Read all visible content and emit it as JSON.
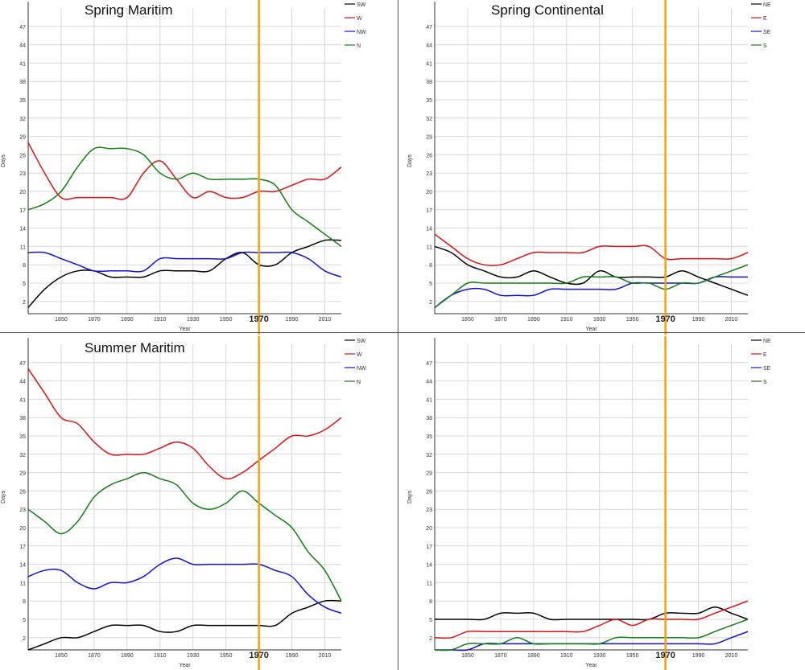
{
  "chart_data": [
    {
      "type": "line",
      "title": "Spring Maritim",
      "xlabel": "Year",
      "ylabel": "Days",
      "xlim": [
        1830,
        2020
      ],
      "ylim": [
        0,
        50
      ],
      "xticks": [
        1850,
        1870,
        1890,
        1910,
        1930,
        1950,
        1990,
        2010
      ],
      "yticks": [
        2,
        5,
        8,
        11,
        14,
        17,
        20,
        23,
        26,
        29,
        32,
        35,
        38,
        41,
        44,
        47
      ],
      "marker": {
        "year": 1970,
        "label": "1970",
        "color": "#f5a00f"
      },
      "grid": true,
      "legend": "top-right",
      "series": [
        {
          "name": "SW",
          "color": "#000000",
          "x": [
            1830,
            1840,
            1850,
            1860,
            1870,
            1880,
            1890,
            1900,
            1910,
            1920,
            1930,
            1940,
            1950,
            1960,
            1970,
            1980,
            1990,
            2000,
            2010,
            2020
          ],
          "y": [
            1,
            4,
            6,
            7,
            7,
            6,
            6,
            6,
            7,
            7,
            7,
            7,
            9,
            10,
            8,
            8,
            10,
            11,
            12,
            12
          ]
        },
        {
          "name": "W",
          "color": "#e01010",
          "x": [
            1830,
            1840,
            1850,
            1860,
            1870,
            1880,
            1890,
            1900,
            1910,
            1920,
            1930,
            1940,
            1950,
            1960,
            1970,
            1980,
            1990,
            2000,
            2010,
            2020
          ],
          "y": [
            28,
            23,
            19,
            19,
            19,
            19,
            19,
            23,
            25,
            22,
            19,
            20,
            19,
            19,
            20,
            20,
            21,
            22,
            22,
            24
          ]
        },
        {
          "name": "NW",
          "color": "#1010e0",
          "x": [
            1830,
            1840,
            1850,
            1860,
            1870,
            1880,
            1890,
            1900,
            1910,
            1920,
            1930,
            1940,
            1950,
            1960,
            1970,
            1980,
            1990,
            2000,
            2010,
            2020
          ],
          "y": [
            10,
            10,
            9,
            8,
            7,
            7,
            7,
            7,
            9,
            9,
            9,
            9,
            9,
            10,
            10,
            10,
            10,
            9,
            7,
            6
          ]
        },
        {
          "name": "N",
          "color": "#108010",
          "x": [
            1830,
            1840,
            1850,
            1860,
            1870,
            1880,
            1890,
            1900,
            1910,
            1920,
            1930,
            1940,
            1950,
            1960,
            1970,
            1980,
            1990,
            2000,
            2010,
            2020
          ],
          "y": [
            17,
            18,
            20,
            24,
            27,
            27,
            27,
            26,
            23,
            22,
            23,
            22,
            22,
            22,
            22,
            21,
            17,
            15,
            13,
            11
          ]
        }
      ]
    },
    {
      "type": "line",
      "title": "Spring Continental",
      "xlabel": "Year",
      "ylabel": "Days",
      "xlim": [
        1830,
        2020
      ],
      "ylim": [
        0,
        50
      ],
      "xticks": [
        1850,
        1870,
        1890,
        1910,
        1930,
        1950,
        1990,
        2010
      ],
      "yticks": [
        2,
        5,
        8,
        11,
        14,
        17,
        20,
        23,
        26,
        29,
        32,
        35,
        38,
        41,
        44,
        47
      ],
      "marker": {
        "year": 1970,
        "label": "1970",
        "color": "#f5a00f"
      },
      "grid": true,
      "legend": "top-right",
      "series": [
        {
          "name": "NE",
          "color": "#000000",
          "x": [
            1830,
            1840,
            1850,
            1860,
            1870,
            1880,
            1890,
            1900,
            1910,
            1920,
            1930,
            1940,
            1950,
            1960,
            1970,
            1980,
            1990,
            2000,
            2010,
            2020
          ],
          "y": [
            11,
            10,
            8,
            7,
            6,
            6,
            7,
            6,
            5,
            5,
            7,
            6,
            6,
            6,
            6,
            7,
            6,
            5,
            4,
            3
          ]
        },
        {
          "name": "E",
          "color": "#e01010",
          "x": [
            1830,
            1840,
            1850,
            1860,
            1870,
            1880,
            1890,
            1900,
            1910,
            1920,
            1930,
            1940,
            1950,
            1960,
            1970,
            1980,
            1990,
            2000,
            2010,
            2020
          ],
          "y": [
            13,
            11,
            9,
            8,
            8,
            9,
            10,
            10,
            10,
            10,
            11,
            11,
            11,
            11,
            9,
            9,
            9,
            9,
            9,
            10
          ]
        },
        {
          "name": "SE",
          "color": "#1010e0",
          "x": [
            1830,
            1840,
            1850,
            1860,
            1870,
            1880,
            1890,
            1900,
            1910,
            1920,
            1930,
            1940,
            1950,
            1960,
            1970,
            1980,
            1990,
            2000,
            2010,
            2020
          ],
          "y": [
            1,
            3,
            4,
            4,
            3,
            3,
            3,
            4,
            4,
            4,
            4,
            4,
            5,
            5,
            5,
            5,
            5,
            6,
            6,
            6
          ]
        },
        {
          "name": "S",
          "color": "#108010",
          "x": [
            1830,
            1840,
            1850,
            1860,
            1870,
            1880,
            1890,
            1900,
            1910,
            1920,
            1930,
            1940,
            1950,
            1960,
            1970,
            1980,
            1990,
            2000,
            2010,
            2020
          ],
          "y": [
            1,
            3,
            5,
            5,
            5,
            5,
            5,
            5,
            5,
            6,
            6,
            6,
            5,
            5,
            4,
            5,
            5,
            6,
            7,
            8
          ]
        }
      ]
    },
    {
      "type": "line",
      "title": "Summer Maritim",
      "xlabel": "Year",
      "ylabel": "Days",
      "xlim": [
        1830,
        2020
      ],
      "ylim": [
        0,
        50
      ],
      "xticks": [
        1850,
        1870,
        1890,
        1910,
        1930,
        1950,
        1990,
        2010
      ],
      "yticks": [
        2,
        5,
        8,
        11,
        14,
        17,
        20,
        23,
        26,
        29,
        32,
        35,
        38,
        41,
        44,
        47
      ],
      "marker": {
        "year": 1970,
        "label": "1970",
        "color": "#f5a00f"
      },
      "grid": true,
      "legend": "top-right",
      "series": [
        {
          "name": "SW",
          "color": "#000000",
          "x": [
            1830,
            1840,
            1850,
            1860,
            1870,
            1880,
            1890,
            1900,
            1910,
            1920,
            1930,
            1940,
            1950,
            1960,
            1970,
            1980,
            1990,
            2000,
            2010,
            2020
          ],
          "y": [
            0,
            1,
            2,
            2,
            3,
            4,
            4,
            4,
            3,
            3,
            4,
            4,
            4,
            4,
            4,
            4,
            6,
            7,
            8,
            8
          ]
        },
        {
          "name": "W",
          "color": "#e01010",
          "x": [
            1830,
            1840,
            1850,
            1860,
            1870,
            1880,
            1890,
            1900,
            1910,
            1920,
            1930,
            1940,
            1950,
            1960,
            1970,
            1980,
            1990,
            2000,
            2010,
            2020
          ],
          "y": [
            46,
            42,
            38,
            37,
            34,
            32,
            32,
            32,
            33,
            34,
            33,
            30,
            28,
            29,
            31,
            33,
            35,
            35,
            36,
            38
          ]
        },
        {
          "name": "NW",
          "color": "#1010e0",
          "x": [
            1830,
            1840,
            1850,
            1860,
            1870,
            1880,
            1890,
            1900,
            1910,
            1920,
            1930,
            1940,
            1950,
            1960,
            1970,
            1980,
            1990,
            2000,
            2010,
            2020
          ],
          "y": [
            12,
            13,
            13,
            11,
            10,
            11,
            11,
            12,
            14,
            15,
            14,
            14,
            14,
            14,
            14,
            13,
            12,
            9,
            7,
            6
          ]
        },
        {
          "name": "N",
          "color": "#108010",
          "x": [
            1830,
            1840,
            1850,
            1860,
            1870,
            1880,
            1890,
            1900,
            1910,
            1920,
            1930,
            1940,
            1950,
            1960,
            1970,
            1980,
            1990,
            2000,
            2010,
            2020
          ],
          "y": [
            23,
            21,
            19,
            21,
            25,
            27,
            28,
            29,
            28,
            27,
            24,
            23,
            24,
            26,
            24,
            22,
            20,
            16,
            13,
            8
          ]
        }
      ]
    },
    {
      "type": "line",
      "title": "",
      "xlabel": "Year",
      "ylabel": "Days",
      "xlim": [
        1830,
        2020
      ],
      "ylim": [
        0,
        50
      ],
      "xticks": [
        1850,
        1870,
        1890,
        1910,
        1930,
        1950,
        1990,
        2010
      ],
      "yticks": [
        2,
        5,
        8,
        11,
        14,
        17,
        20,
        23,
        26,
        29,
        32,
        35,
        38,
        41,
        44,
        47
      ],
      "marker": {
        "year": 1970,
        "label": "1970",
        "color": "#f5a00f"
      },
      "grid": true,
      "legend": "top-right",
      "series": [
        {
          "name": "NE",
          "color": "#000000",
          "x": [
            1830,
            1840,
            1850,
            1860,
            1870,
            1880,
            1890,
            1900,
            1910,
            1920,
            1930,
            1940,
            1950,
            1960,
            1970,
            1980,
            1990,
            2000,
            2010,
            2020
          ],
          "y": [
            5,
            5,
            5,
            5,
            6,
            6,
            6,
            5,
            5,
            5,
            5,
            5,
            5,
            5,
            6,
            6,
            6,
            7,
            6,
            5
          ]
        },
        {
          "name": "E",
          "color": "#e01010",
          "x": [
            1830,
            1840,
            1850,
            1860,
            1870,
            1880,
            1890,
            1900,
            1910,
            1920,
            1930,
            1940,
            1950,
            1960,
            1970,
            1980,
            1990,
            2000,
            2010,
            2020
          ],
          "y": [
            2,
            2,
            3,
            3,
            3,
            3,
            3,
            3,
            3,
            3,
            4,
            5,
            4,
            5,
            5,
            5,
            5,
            6,
            7,
            8
          ]
        },
        {
          "name": "SE",
          "color": "#1010e0",
          "x": [
            1830,
            1840,
            1850,
            1860,
            1870,
            1880,
            1890,
            1900,
            1910,
            1920,
            1930,
            1940,
            1950,
            1960,
            1970,
            1980,
            1990,
            2000,
            2010,
            2020
          ],
          "y": [
            0,
            0,
            0,
            1,
            1,
            1,
            1,
            1,
            1,
            1,
            1,
            1,
            1,
            1,
            1,
            1,
            1,
            1,
            2,
            3
          ]
        },
        {
          "name": "S",
          "color": "#108010",
          "x": [
            1830,
            1840,
            1850,
            1860,
            1870,
            1880,
            1890,
            1900,
            1910,
            1920,
            1930,
            1940,
            1950,
            1960,
            1970,
            1980,
            1990,
            2000,
            2010,
            2020
          ],
          "y": [
            0,
            0,
            1,
            1,
            1,
            2,
            1,
            1,
            1,
            1,
            1,
            2,
            2,
            2,
            2,
            2,
            2,
            3,
            4,
            5
          ]
        }
      ]
    }
  ]
}
